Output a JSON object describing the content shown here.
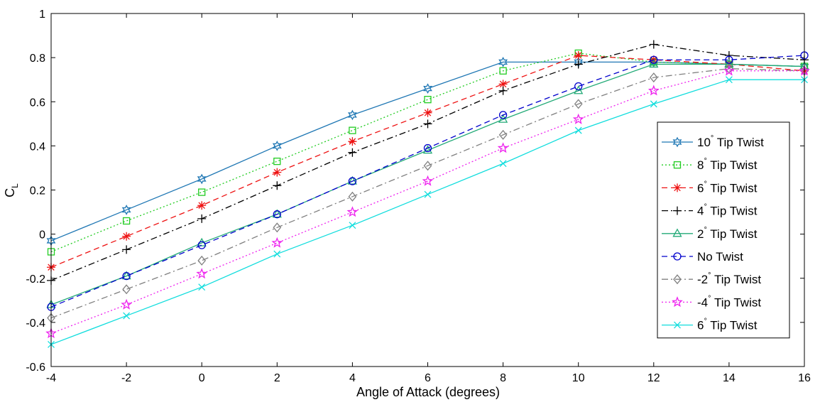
{
  "chart_data": {
    "type": "line",
    "title": "",
    "xlabel": "Angle of Attack (degrees)",
    "ylabel": "C",
    "ylabel_subscript": "L",
    "xlim": [
      -4,
      16
    ],
    "ylim": [
      -0.6,
      1
    ],
    "grid": false,
    "legend_position": "right",
    "x_ticks": [
      "-4",
      "-2",
      "0",
      "2",
      "4",
      "6",
      "8",
      "10",
      "12",
      "14",
      "16"
    ],
    "y_ticks": [
      "-0.6",
      "-0.4",
      "-0.2",
      "0",
      "0.2",
      "0.4",
      "0.6",
      "0.8",
      "1"
    ],
    "x": [
      -4,
      -2,
      0,
      2,
      4,
      6,
      8,
      10,
      12,
      14,
      16
    ],
    "series": [
      {
        "name": "10° Tip Twist",
        "degree": "10",
        "rest": " Tip Twist",
        "color": "#1f77b4",
        "dash": "",
        "marker": "hexagram",
        "values": [
          -0.03,
          0.11,
          0.25,
          0.4,
          0.54,
          0.66,
          0.78,
          0.78,
          0.78,
          0.77,
          0.76
        ]
      },
      {
        "name": "8° Tip Twist",
        "degree": "8",
        "rest": " Tip Twist",
        "color": "#22cc22",
        "dash": "2,3",
        "marker": "square",
        "values": [
          -0.08,
          0.06,
          0.19,
          0.33,
          0.47,
          0.61,
          0.74,
          0.82,
          0.78,
          0.77,
          0.76
        ]
      },
      {
        "name": "6° Tip Twist",
        "degree": "6",
        "rest": " Tip Twist",
        "color": "#ee1111",
        "dash": "8,5",
        "marker": "asterisk",
        "values": [
          -0.15,
          -0.01,
          0.13,
          0.28,
          0.42,
          0.55,
          0.68,
          0.81,
          0.79,
          0.77,
          0.74
        ]
      },
      {
        "name": "4° Tip Twist",
        "degree": "4",
        "rest": " Tip Twist",
        "color": "#000000",
        "dash": "9,4,2,4",
        "marker": "plus",
        "values": [
          -0.21,
          -0.07,
          0.07,
          0.22,
          0.37,
          0.5,
          0.65,
          0.77,
          0.86,
          0.81,
          0.79
        ]
      },
      {
        "name": "2° Tip Twist",
        "degree": "2",
        "rest": " Tip Twist",
        "color": "#22aa77",
        "dash": "",
        "marker": "triangle",
        "values": [
          -0.32,
          -0.19,
          -0.04,
          0.09,
          0.24,
          0.38,
          0.52,
          0.65,
          0.77,
          0.77,
          0.76
        ]
      },
      {
        "name": "No Twist",
        "degree": "",
        "rest": "No Twist",
        "color": "#0000cc",
        "dash": "8,5",
        "marker": "circle",
        "values": [
          -0.33,
          -0.19,
          -0.05,
          0.09,
          0.24,
          0.39,
          0.54,
          0.67,
          0.79,
          0.79,
          0.81
        ]
      },
      {
        "name": "-2° Tip Twist",
        "degree": "-2",
        "rest": " Tip Twist",
        "color": "#808080",
        "dash": "9,4,2,4",
        "marker": "diamond",
        "values": [
          -0.38,
          -0.25,
          -0.12,
          0.03,
          0.17,
          0.31,
          0.45,
          0.59,
          0.71,
          0.75,
          0.74
        ]
      },
      {
        "name": "-4° Tip Twist",
        "degree": "-4",
        "rest": " Tip Twist",
        "color": "#ee22ee",
        "dash": "2,3",
        "marker": "pentagram",
        "values": [
          -0.45,
          -0.32,
          -0.18,
          -0.04,
          0.1,
          0.24,
          0.39,
          0.52,
          0.65,
          0.74,
          0.74
        ]
      },
      {
        "name": "6° Tip Twist",
        "degree": "6",
        "rest": " Tip Twist",
        "color": "#11dddd",
        "dash": "",
        "marker": "x",
        "values": [
          -0.5,
          -0.37,
          -0.24,
          -0.09,
          0.04,
          0.18,
          0.32,
          0.47,
          0.59,
          0.7,
          0.7
        ]
      }
    ]
  }
}
